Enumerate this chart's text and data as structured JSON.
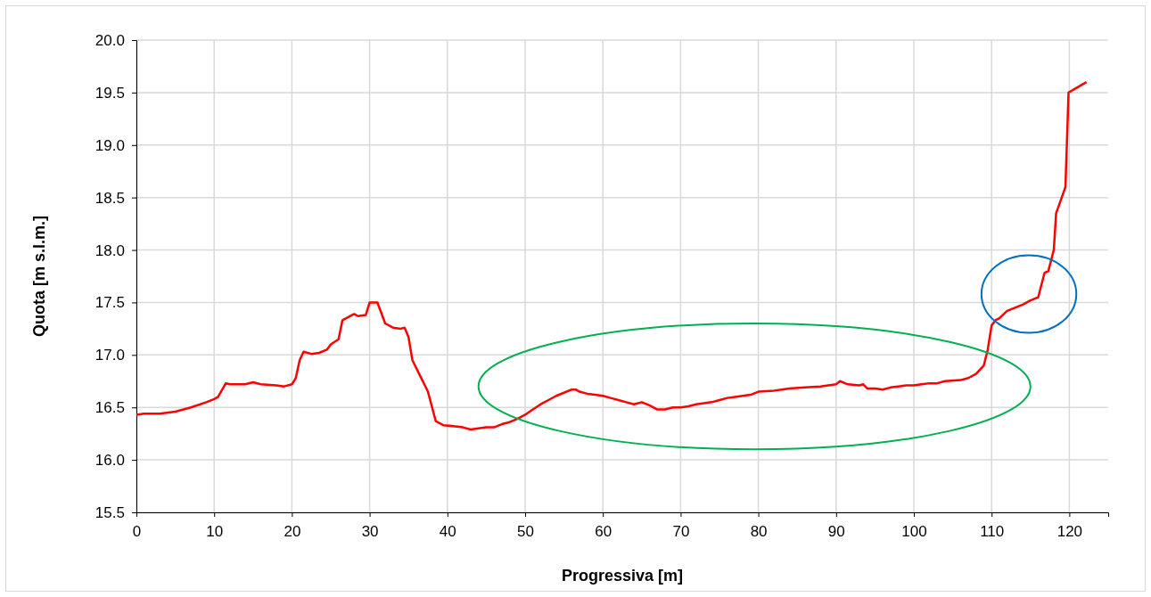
{
  "chart_data": {
    "type": "line",
    "xlabel": "Progressiva [m]",
    "ylabel": "Quota [m s.l.m.]",
    "xlim": [
      0,
      125
    ],
    "xticks": [
      0,
      10,
      20,
      30,
      40,
      50,
      60,
      70,
      80,
      90,
      100,
      110,
      120
    ],
    "ylim": [
      15.5,
      20
    ],
    "yticks": [
      {
        "value": 15.5,
        "label": "15.5"
      },
      {
        "value": 16,
        "label": "16.0"
      },
      {
        "value": 16.5,
        "label": "16.5"
      },
      {
        "value": 17,
        "label": "17.0"
      },
      {
        "value": 17.5,
        "label": "17.5"
      },
      {
        "value": 18,
        "label": "18.0"
      },
      {
        "value": 18.5,
        "label": "18.5"
      },
      {
        "value": 19,
        "label": "19.0"
      },
      {
        "value": 19.5,
        "label": "19.5"
      },
      {
        "value": 20,
        "label": "20.0"
      }
    ],
    "grid": true,
    "marker": "none",
    "line_style": "solid",
    "x": [
      0,
      1,
      3,
      5,
      7,
      9,
      10,
      10.5,
      11.5,
      12,
      14,
      15,
      16,
      18,
      19,
      20,
      20.5,
      21,
      21.5,
      22.5,
      23.5,
      24.5,
      25,
      26,
      26.5,
      28,
      28.5,
      29.5,
      30,
      31,
      32,
      33,
      34,
      34.5,
      35,
      35.5,
      36.5,
      37.5,
      38.5,
      39.5,
      41,
      42,
      43,
      44,
      45,
      46,
      47,
      48,
      49,
      50,
      51,
      52,
      53,
      54,
      55,
      56,
      56.5,
      57,
      58,
      59,
      60,
      61,
      62,
      63,
      64,
      65,
      66,
      67,
      68,
      69,
      70,
      71,
      72,
      73,
      74,
      75,
      76,
      77,
      78,
      79,
      80,
      82,
      83,
      84,
      86,
      88,
      89,
      90,
      90.5,
      91.5,
      93,
      93.5,
      94,
      95,
      96,
      97,
      98,
      99,
      100,
      101,
      102,
      103,
      104,
      106,
      107,
      108,
      109,
      109.5,
      110,
      110.5,
      111,
      112,
      113,
      114,
      115,
      116,
      116.8,
      117.3,
      118,
      118.3,
      119.5,
      119.9,
      122.2
    ],
    "series": [
      {
        "color": "#ff0000",
        "values": [
          16.43,
          16.44,
          16.44,
          16.46,
          16.5,
          16.55,
          16.58,
          16.6,
          16.73,
          16.72,
          16.72,
          16.74,
          16.72,
          16.71,
          16.7,
          16.72,
          16.78,
          16.95,
          17.03,
          17.01,
          17.02,
          17.05,
          17.1,
          17.15,
          17.33,
          17.39,
          17.37,
          17.38,
          17.5,
          17.5,
          17.3,
          17.26,
          17.25,
          17.26,
          17.17,
          16.95,
          16.8,
          16.65,
          16.37,
          16.33,
          16.32,
          16.31,
          16.29,
          16.3,
          16.31,
          16.31,
          16.34,
          16.36,
          16.39,
          16.43,
          16.48,
          16.53,
          16.57,
          16.61,
          16.64,
          16.67,
          16.67,
          16.65,
          16.63,
          16.62,
          16.61,
          16.59,
          16.57,
          16.55,
          16.53,
          16.55,
          16.52,
          16.48,
          16.48,
          16.5,
          16.5,
          16.51,
          16.53,
          16.54,
          16.55,
          16.57,
          16.59,
          16.6,
          16.61,
          16.62,
          16.65,
          16.66,
          16.67,
          16.68,
          16.69,
          16.7,
          16.71,
          16.72,
          16.75,
          16.72,
          16.71,
          16.72,
          16.68,
          16.68,
          16.67,
          16.69,
          16.7,
          16.71,
          16.71,
          16.72,
          16.73,
          16.73,
          16.75,
          16.76,
          16.78,
          16.82,
          16.9,
          17.05,
          17.28,
          17.33,
          17.35,
          17.42,
          17.45,
          17.48,
          17.52,
          17.55,
          17.78,
          17.8,
          18,
          18.35,
          18.6,
          19.5,
          19.6
        ]
      }
    ]
  }
}
